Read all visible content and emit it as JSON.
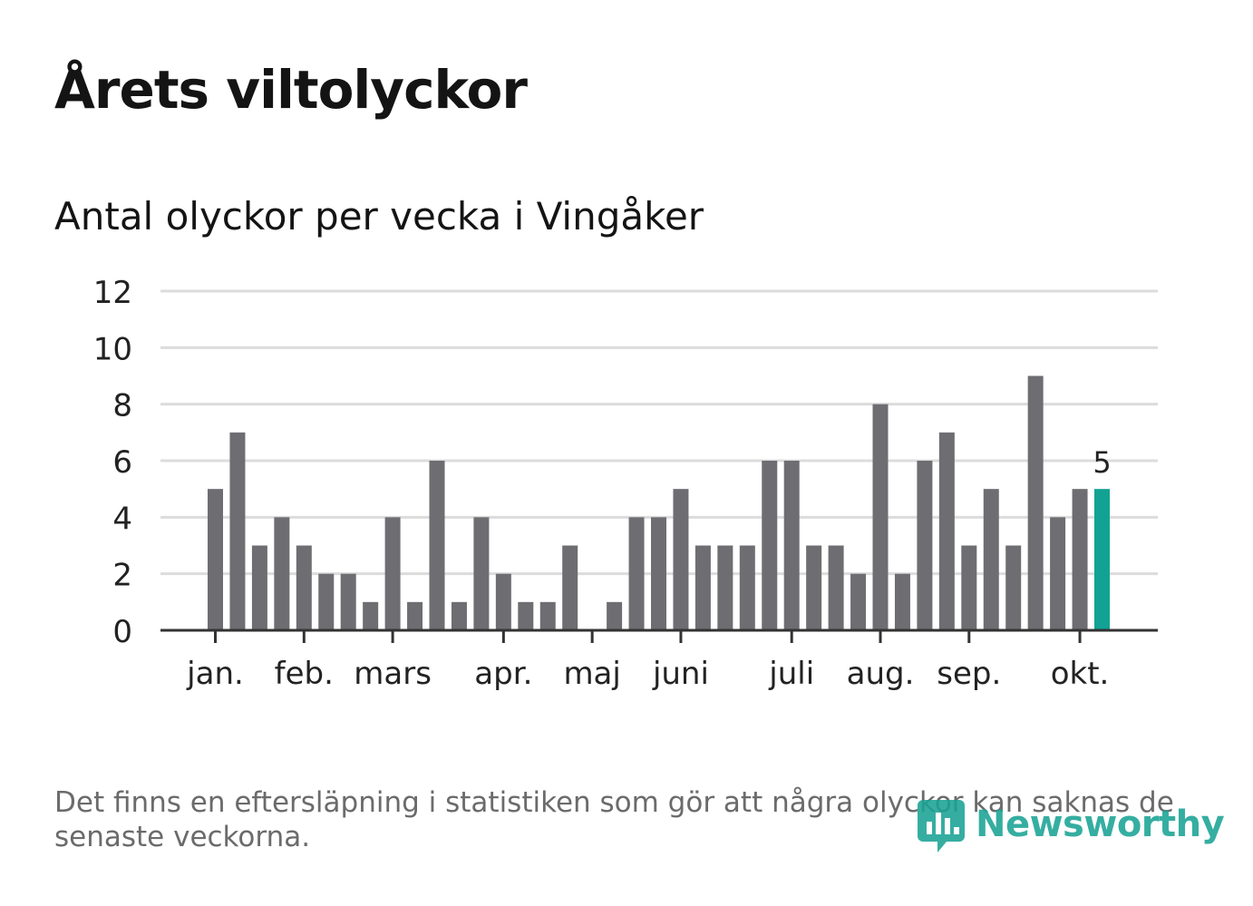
{
  "title": "Årets viltolyckor",
  "subtitle": "Antal olyckor per vecka i Vingåker",
  "note": "Det finns en eftersläpning i statistiken som gör att några olyckor kan saknas de senaste veckorna.",
  "brand": {
    "name": "Newsworthy",
    "color": "#1aa395"
  },
  "chart_data": {
    "type": "bar",
    "title": "Antal olyckor per vecka i Vingåker",
    "xlabel": "",
    "ylabel": "",
    "ylim": [
      0,
      12
    ],
    "yticks": [
      0,
      2,
      4,
      6,
      8,
      10,
      12
    ],
    "grid": true,
    "values": [
      5,
      7,
      3,
      4,
      3,
      2,
      2,
      1,
      4,
      1,
      6,
      1,
      4,
      2,
      1,
      1,
      3,
      0,
      1,
      4,
      4,
      5,
      3,
      3,
      3,
      6,
      6,
      3,
      3,
      2,
      8,
      2,
      6,
      7,
      3,
      5,
      3,
      9,
      4,
      5,
      5
    ],
    "highlight_index": 40,
    "highlight_label": "5",
    "month_labels": [
      {
        "label": "jan.",
        "week": 0
      },
      {
        "label": "feb.",
        "week": 4
      },
      {
        "label": "mars",
        "week": 8
      },
      {
        "label": "apr.",
        "week": 13
      },
      {
        "label": "maj",
        "week": 17
      },
      {
        "label": "juni",
        "week": 21
      },
      {
        "label": "juli",
        "week": 26
      },
      {
        "label": "aug.",
        "week": 30
      },
      {
        "label": "sep.",
        "week": 34
      },
      {
        "label": "okt.",
        "week": 39
      }
    ],
    "colors": {
      "bar": "#6e6d72",
      "highlight": "#12a294",
      "grid": "#dcdcdc",
      "axis": "#333333"
    }
  }
}
